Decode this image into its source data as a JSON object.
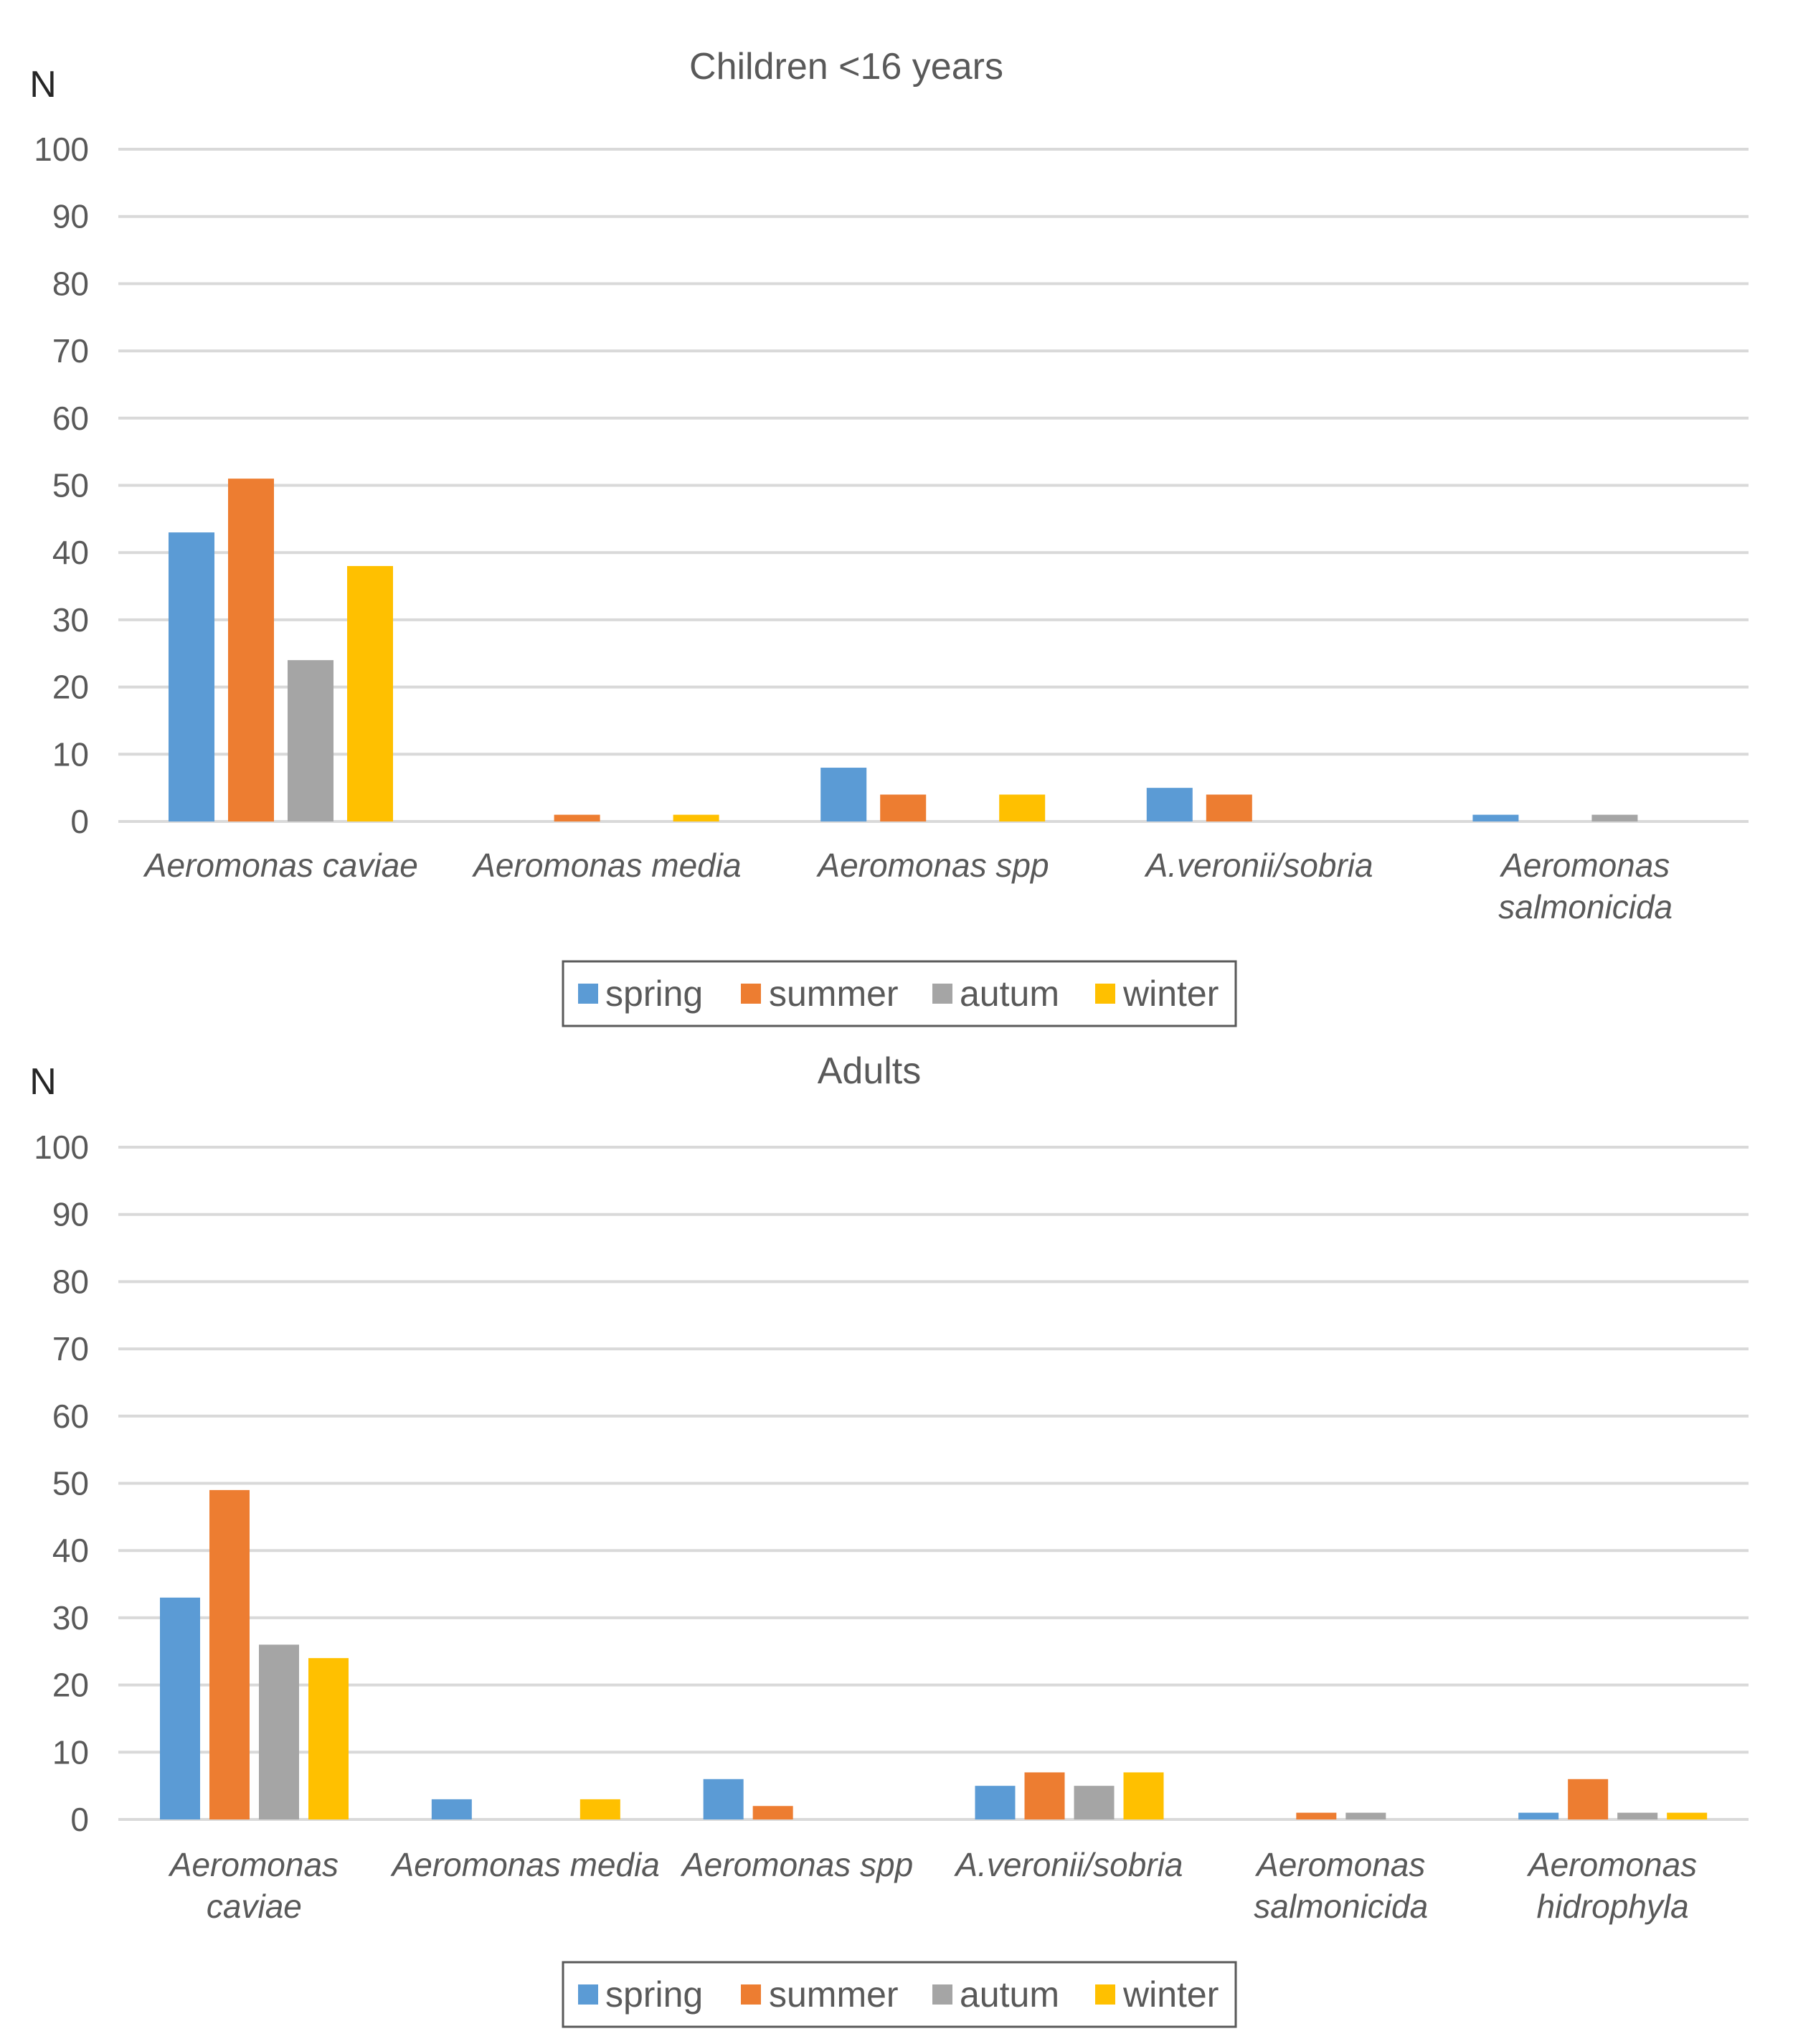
{
  "chart_data": [
    {
      "type": "bar",
      "title": "Children <16 years",
      "ylabel": "N",
      "xlabel": "",
      "ylim": [
        0,
        100
      ],
      "yticks": [
        0,
        10,
        20,
        30,
        40,
        50,
        60,
        70,
        80,
        90,
        100
      ],
      "grid": true,
      "legend": "bottom",
      "categories": [
        [
          "Aeromonas caviae"
        ],
        [
          "Aeromonas media"
        ],
        [
          "Aeromonas spp"
        ],
        [
          "A.veronii/sobria"
        ],
        [
          "Aeromonas",
          "salmonicida"
        ]
      ],
      "series": [
        {
          "name": "spring",
          "color": "#5b9bd5",
          "values": [
            43,
            0,
            8,
            5,
            1
          ]
        },
        {
          "name": "summer",
          "color": "#ed7d31",
          "values": [
            51,
            1,
            4,
            4,
            0
          ]
        },
        {
          "name": "autum",
          "color": "#a5a5a5",
          "values": [
            24,
            0,
            0,
            0,
            1
          ]
        },
        {
          "name": "winter",
          "color": "#ffc000",
          "values": [
            38,
            1,
            4,
            0,
            0
          ]
        }
      ]
    },
    {
      "type": "bar",
      "title": "Adults",
      "ylabel": "N",
      "xlabel": "",
      "ylim": [
        0,
        100
      ],
      "yticks": [
        0,
        10,
        20,
        30,
        40,
        50,
        60,
        70,
        80,
        90,
        100
      ],
      "grid": true,
      "legend": "bottom",
      "categories": [
        [
          "Aeromonas",
          "caviae"
        ],
        [
          "Aeromonas media"
        ],
        [
          "Aeromonas spp"
        ],
        [
          "A.veronii/sobria"
        ],
        [
          "Aeromonas",
          "salmonicida"
        ],
        [
          "Aeromonas",
          "hidrophyla"
        ]
      ],
      "series": [
        {
          "name": "spring",
          "color": "#5b9bd5",
          "values": [
            33,
            3,
            6,
            5,
            0,
            1
          ]
        },
        {
          "name": "summer",
          "color": "#ed7d31",
          "values": [
            49,
            0,
            2,
            7,
            1,
            6
          ]
        },
        {
          "name": "autum",
          "color": "#a5a5a5",
          "values": [
            26,
            0,
            0,
            5,
            1,
            1
          ]
        },
        {
          "name": "winter",
          "color": "#ffc000",
          "values": [
            24,
            3,
            0,
            7,
            0,
            1
          ]
        }
      ]
    }
  ]
}
